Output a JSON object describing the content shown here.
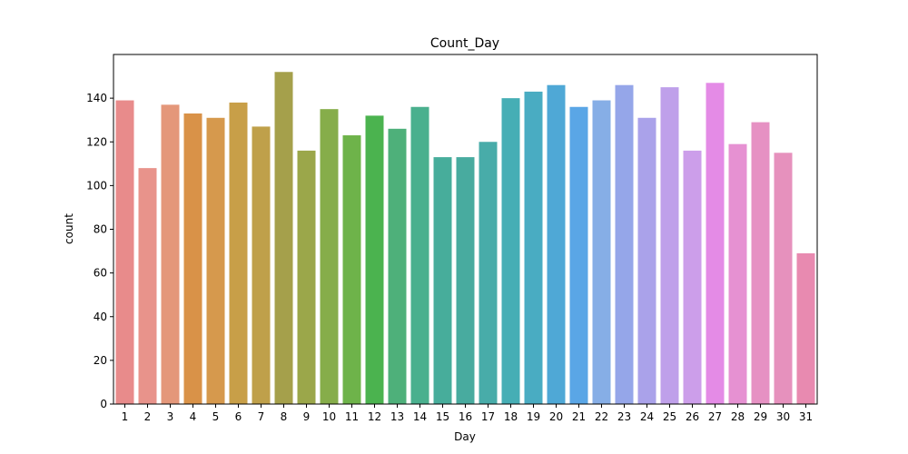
{
  "chart_data": {
    "type": "bar",
    "title": "Count_Day",
    "xlabel": "Day",
    "ylabel": "count",
    "categories": [
      "1",
      "2",
      "3",
      "4",
      "5",
      "6",
      "7",
      "8",
      "9",
      "10",
      "11",
      "12",
      "13",
      "14",
      "15",
      "16",
      "17",
      "18",
      "19",
      "20",
      "21",
      "22",
      "23",
      "24",
      "25",
      "26",
      "27",
      "28",
      "29",
      "30",
      "31"
    ],
    "values": [
      139,
      108,
      137,
      133,
      131,
      138,
      127,
      152,
      116,
      135,
      123,
      132,
      126,
      136,
      113,
      113,
      120,
      140,
      143,
      146,
      136,
      139,
      146,
      131,
      145,
      116,
      147,
      119,
      129,
      115,
      69
    ],
    "yticks": [
      0,
      20,
      40,
      60,
      80,
      100,
      120,
      140
    ],
    "ylim": [
      0,
      160
    ],
    "grid": false,
    "colors": [
      "#e88b8b",
      "#e8938b",
      "#e4977a",
      "#d99248",
      "#d6994d",
      "#c89f48",
      "#bfa04a",
      "#a5a04b",
      "#9ba74a",
      "#86ad4a",
      "#6eb34a",
      "#4bb34f",
      "#4eb07a",
      "#4ab08e",
      "#47ad9b",
      "#48ab9f",
      "#48aca9",
      "#46aeb5",
      "#49acc2",
      "#4fa8d6",
      "#5aa6e6",
      "#86aee6",
      "#95a6e9",
      "#aaa2ea",
      "#bfa0ea",
      "#cc9eea",
      "#e48be6",
      "#e691d2",
      "#e691c3",
      "#e691bd",
      "#e88ab0"
    ]
  }
}
